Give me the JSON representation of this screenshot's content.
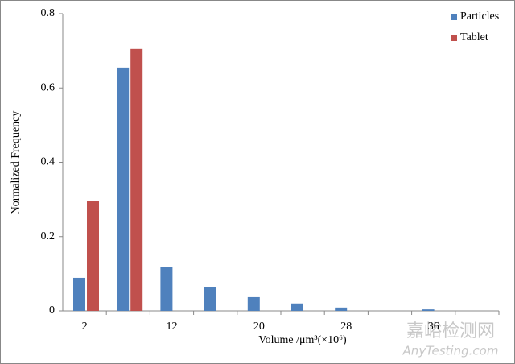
{
  "chart_data": {
    "type": "bar",
    "x_label": "Volume /μm³(×10⁶)",
    "y_label": "Normalized Frequency",
    "categories": [
      "2",
      null,
      "12",
      null,
      "20",
      null,
      "28",
      null,
      "36",
      null
    ],
    "series": [
      {
        "name": "Particles",
        "color": "#4f81bd",
        "values": [
          0.089,
          0.655,
          0.119,
          0.063,
          0.037,
          0.02,
          0.009,
          0,
          0.004,
          0
        ]
      },
      {
        "name": "Tablet",
        "color": "#c0504d",
        "values": [
          0.297,
          0.705,
          0,
          0,
          0,
          0,
          0,
          0,
          0,
          0
        ]
      }
    ],
    "ylim": [
      0,
      0.8
    ],
    "yticks": [
      0,
      0.2,
      0.4,
      0.6,
      0.8
    ],
    "grid": false,
    "legend": "top-right"
  },
  "watermark": {
    "title": "嘉峪检测网",
    "url": "AnyTesting.com"
  }
}
